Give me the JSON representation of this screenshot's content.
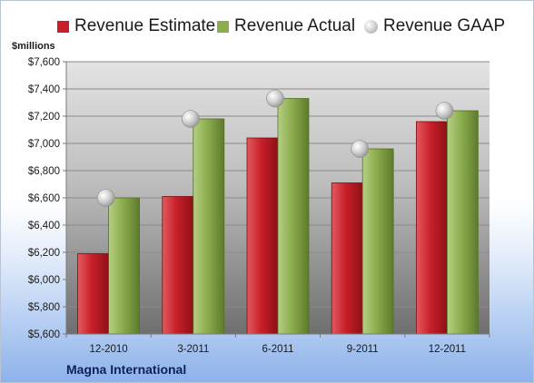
{
  "legend": {
    "estimate_label": "Revenue Estimate",
    "actual_label": "Revenue Actual",
    "gaap_label": "Revenue GAAP"
  },
  "unit_label": "$millions",
  "company_name": "Magna International",
  "colors": {
    "estimate": "#c8202a",
    "actual": "#8cad4e",
    "gaap": "#c8c8c8"
  },
  "chart_data": {
    "type": "bar",
    "categories": [
      "12-2010",
      "3-2011",
      "6-2011",
      "9-2011",
      "12-2011"
    ],
    "series": [
      {
        "name": "Revenue Estimate",
        "values": [
          6190,
          6610,
          7040,
          6710,
          7160
        ]
      },
      {
        "name": "Revenue Actual",
        "values": [
          6600,
          7180,
          7330,
          6960,
          7240
        ]
      },
      {
        "name": "Revenue GAAP",
        "values": [
          6600,
          7180,
          7330,
          6960,
          7240
        ]
      }
    ],
    "ylabel": "$millions",
    "ylim": [
      5600,
      7600
    ],
    "ytick_labels": [
      "$5,600",
      "$5,800",
      "$6,000",
      "$6,200",
      "$6,400",
      "$6,600",
      "$6,800",
      "$7,000",
      "$7,200",
      "$7,400",
      "$7,600"
    ],
    "grid": true,
    "legend_position": "top"
  }
}
